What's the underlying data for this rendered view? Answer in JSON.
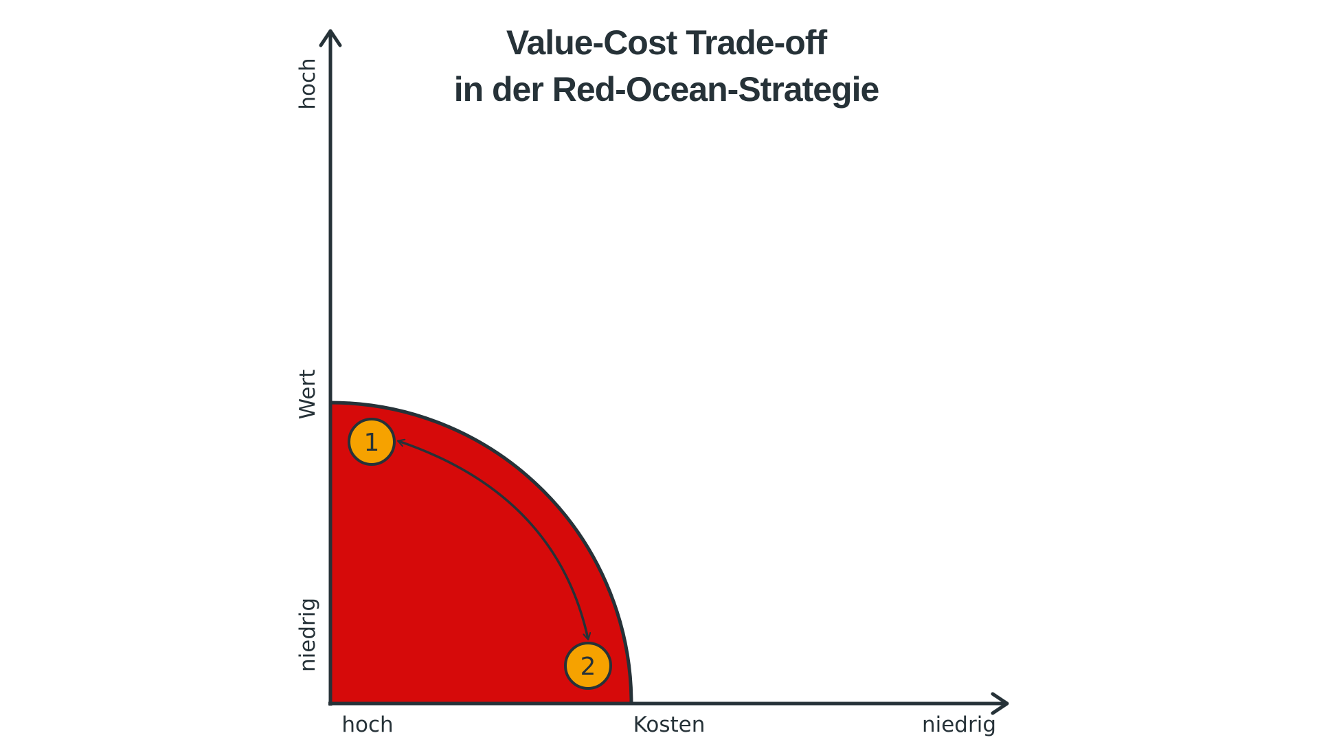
{
  "title": {
    "line1": "Value-Cost Trade-off",
    "line2": "in der Red-Ocean-Strategie"
  },
  "y_axis": {
    "label": "Wert",
    "high": "hoch",
    "low": "niedrig"
  },
  "x_axis": {
    "label": "Kosten",
    "high": "hoch",
    "low": "niedrig"
  },
  "markers": [
    {
      "label": "1"
    },
    {
      "label": "2"
    }
  ],
  "colors": {
    "ink": "#263238",
    "red_ocean": "#d60a0a",
    "marker": "#f6a200",
    "background": "#ffffff"
  }
}
